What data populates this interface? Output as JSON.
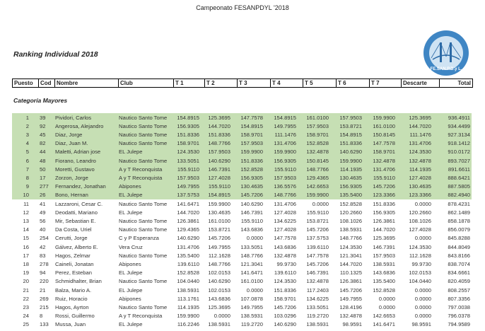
{
  "document": {
    "title": "Campeonato FESANPDYL '2018",
    "section_title": "Ranking Individual 2018",
    "logo_text": "FE.SAN.P.D.y L.",
    "category": "Categoría Mayores",
    "highlight_color": "#c6dfb4"
  },
  "table": {
    "headers": [
      "Puesto",
      "Cod",
      "Nombre",
      "Club",
      "T 1",
      "T 2",
      "T 3",
      "T 4",
      "T 5",
      "T 6",
      "T 7",
      "Descarte",
      "Total"
    ],
    "rows": [
      [
        "1",
        "39",
        "Pividori, Carlos",
        "Nautico Santo Tome",
        "154.8915",
        "125.3695",
        "147.7578",
        "154.8915",
        "161.0100",
        "157.9503",
        "159.9900",
        "125.3695",
        "936.4911"
      ],
      [
        "2",
        "92",
        "Angerosa, Alejandro",
        "Nautico Santo Tome",
        "156.9305",
        "144.7020",
        "154.8915",
        "149.7955",
        "157.9503",
        "153.8721",
        "161.0100",
        "144.7020",
        "934.4499"
      ],
      [
        "3",
        "45",
        "Diaz, Jorge",
        "Nautico Santo Tome",
        "151.8336",
        "151.8336",
        "158.9701",
        "111.1476",
        "158.9701",
        "154.8915",
        "150.8145",
        "111.1476",
        "927.3134"
      ],
      [
        "4",
        "82",
        "Diaz, Juan M.",
        "Nautico Santo Tome",
        "158.9701",
        "148.7766",
        "157.9503",
        "131.4706",
        "152.8528",
        "151.8336",
        "147.7578",
        "131.4706",
        "918.1412"
      ],
      [
        "5",
        "44",
        "Maletti, Adrian jose",
        "EL Julepe",
        "124.3530",
        "157.9503",
        "159.9900",
        "159.9900",
        "132.4878",
        "140.6290",
        "158.9701",
        "124.3530",
        "910.0172"
      ],
      [
        "6",
        "48",
        "Fiorano, Leandro",
        "Nautico Santo Tome",
        "133.5051",
        "140.6290",
        "151.8336",
        "156.9305",
        "150.8145",
        "159.9900",
        "132.4878",
        "132.4878",
        "893.7027"
      ],
      [
        "7",
        "50",
        "Moretti, Gustavo",
        "A y T Reconquista",
        "155.9110",
        "146.7391",
        "152.8528",
        "155.9110",
        "148.7766",
        "114.1935",
        "131.4706",
        "114.1935",
        "891.6611"
      ],
      [
        "8",
        "17",
        "Zorzon, Jorge",
        "A y T Reconquista",
        "157.9503",
        "127.4028",
        "156.9305",
        "157.9503",
        "129.4365",
        "130.4635",
        "155.9110",
        "127.4028",
        "888.6421"
      ],
      [
        "9",
        "277",
        "Fernandez, Jonathan",
        "Abipones",
        "149.7955",
        "155.9110",
        "130.4635",
        "136.5576",
        "142.6653",
        "156.9305",
        "145.7206",
        "130.4635",
        "887.5805"
      ],
      [
        "10",
        "26",
        "Bono, Hernan",
        "EL Julepe",
        "137.5753",
        "154.8915",
        "145.7206",
        "148.7766",
        "159.9900",
        "135.5400",
        "123.3366",
        "123.3366",
        "882.4940"
      ],
      [
        "11",
        "41",
        "Lazzaroni, Cesar C.",
        "Nautico Santo Tome",
        "141.6471",
        "159.9900",
        "140.6290",
        "131.4706",
        "0.0000",
        "152.8528",
        "151.8336",
        "0.0000",
        "878.4231"
      ],
      [
        "12",
        "49",
        "Deodatti, Mariano",
        "EL Julepe",
        "144.7020",
        "130.4635",
        "146.7391",
        "127.4028",
        "155.9110",
        "120.2660",
        "156.9305",
        "120.2660",
        "862.1489"
      ],
      [
        "13",
        "56",
        "Mir, Sebastian E.",
        "Nautico Santo Tome",
        "126.3861",
        "161.0100",
        "155.9110",
        "134.6225",
        "153.8721",
        "108.1026",
        "126.3861",
        "108.1026",
        "858.1878"
      ],
      [
        "14",
        "40",
        "Da Costa, Uriel",
        "Nautico Santo Tome",
        "129.4365",
        "153.8721",
        "143.6836",
        "127.4028",
        "145.7206",
        "138.5931",
        "144.7020",
        "127.4028",
        "856.0079"
      ],
      [
        "15",
        "254",
        "Cerutti, Jorge",
        "C y P Esperanza",
        "140.6290",
        "145.7206",
        "0.0000",
        "147.7578",
        "137.5753",
        "148.7766",
        "125.3695",
        "0.0000",
        "845.8288"
      ],
      [
        "16",
        "42",
        "Gálvez, Alberto E.",
        "Vera Cruz",
        "131.4706",
        "149.7955",
        "133.5051",
        "143.6836",
        "139.6110",
        "124.3530",
        "146.7391",
        "124.3530",
        "844.8049"
      ],
      [
        "17",
        "83",
        "Hagos, Zelmar",
        "Nautico Santo Tome",
        "135.5400",
        "112.1628",
        "148.7766",
        "132.4878",
        "147.7578",
        "121.3041",
        "157.9503",
        "112.1628",
        "843.8166"
      ],
      [
        "18",
        "278",
        "Caineli, Jonatan",
        "Abipones",
        "139.6110",
        "148.7766",
        "121.3041",
        "99.9730",
        "145.7206",
        "144.7020",
        "138.5931",
        "99.9730",
        "838.7074"
      ],
      [
        "19",
        "94",
        "Perez, Esteban",
        "EL Julepe",
        "152.8528",
        "102.0153",
        "141.6471",
        "139.6110",
        "146.7391",
        "110.1325",
        "143.6836",
        "102.0153",
        "834.6661"
      ],
      [
        "20",
        "220",
        "Schmidhalter, Brian",
        "Nautico Santo Tome",
        "104.0440",
        "140.6290",
        "161.0100",
        "124.3530",
        "132.4878",
        "126.3861",
        "135.5400",
        "104.0440",
        "820.4059"
      ],
      [
        "21",
        "21",
        "Balza, Mario A.",
        "EL Julepe",
        "138.5931",
        "102.0153",
        "0.0000",
        "151.8336",
        "117.2403",
        "145.7206",
        "152.8528",
        "0.0000",
        "808.2557"
      ],
      [
        "22",
        "269",
        "Ruiz, Horacio",
        "Abipones",
        "113.1761",
        "143.6836",
        "107.0878",
        "158.9701",
        "134.6225",
        "149.7955",
        "0.0000",
        "0.0000",
        "807.3356"
      ],
      [
        "23",
        "215",
        "Hagos, Ayrton",
        "Nautico Santo Tome",
        "114.1935",
        "125.3695",
        "149.7955",
        "145.7206",
        "133.5051",
        "128.4196",
        "0.0000",
        "0.0000",
        "797.0038"
      ],
      [
        "24",
        "8",
        "Rossi, Guillermo",
        "A y T Reconquista",
        "159.9900",
        "0.0000",
        "138.5931",
        "103.0296",
        "119.2720",
        "132.4878",
        "142.6653",
        "0.0000",
        "796.0378"
      ],
      [
        "25",
        "133",
        "Mussa, Juan",
        "EL Julepe",
        "116.2246",
        "138.5931",
        "119.2720",
        "140.6290",
        "138.5931",
        "98.9591",
        "141.6471",
        "98.9591",
        "794.9589"
      ]
    ]
  }
}
